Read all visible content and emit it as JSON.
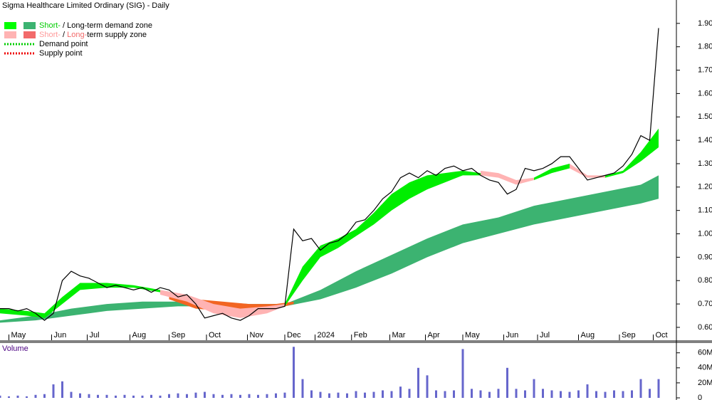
{
  "chart_data": [
    {
      "type": "line",
      "title": "Sigma Healthcare Limited Ordinary (SIG) - Daily",
      "x": [
        0,
        1,
        2,
        3,
        4,
        5,
        6,
        7,
        8,
        9,
        10,
        11,
        12,
        13,
        14,
        15,
        16,
        17,
        18,
        19,
        20,
        21,
        22,
        23,
        24,
        25,
        26,
        27,
        28,
        29,
        30,
        31,
        32,
        33,
        34,
        35,
        36,
        37,
        38,
        39,
        40,
        41,
        42,
        43,
        44,
        45,
        46,
        47,
        48,
        49,
        50,
        51,
        52,
        53,
        54,
        55,
        56,
        57,
        58,
        59,
        60,
        61,
        62,
        63,
        64,
        65,
        66,
        67,
        68,
        69,
        70,
        71,
        72,
        73,
        74
      ],
      "series": [
        {
          "color": "#000000",
          "values": [
            0.68,
            0.68,
            0.67,
            0.68,
            0.66,
            0.63,
            0.66,
            0.8,
            0.84,
            0.82,
            0.81,
            0.79,
            0.77,
            0.78,
            0.77,
            0.76,
            0.77,
            0.75,
            0.77,
            0.76,
            0.73,
            0.74,
            0.7,
            0.64,
            0.65,
            0.66,
            0.64,
            0.63,
            0.65,
            0.68,
            0.68,
            0.68,
            0.69,
            1.02,
            0.97,
            0.98,
            0.93,
            0.96,
            0.97,
            1.0,
            1.05,
            1.06,
            1.1,
            1.15,
            1.18,
            1.24,
            1.26,
            1.24,
            1.27,
            1.25,
            1.28,
            1.29,
            1.27,
            1.28,
            1.25,
            1.23,
            1.22,
            1.17,
            1.19,
            1.28,
            1.27,
            1.28,
            1.3,
            1.33,
            1.33,
            1.28,
            1.23,
            1.24,
            1.25,
            1.26,
            1.29,
            1.34,
            1.42,
            1.4,
            1.88
          ]
        }
      ],
      "zones": {
        "long_term_demand": {
          "color": "#3cb371",
          "x": [
            0,
            4,
            8,
            12,
            16,
            20,
            24,
            28,
            32,
            36,
            40,
            44,
            48,
            52,
            56,
            60,
            64,
            68,
            72,
            74
          ],
          "low": [
            0.62,
            0.63,
            0.65,
            0.67,
            0.68,
            0.69,
            0.69,
            0.69,
            0.69,
            0.72,
            0.77,
            0.83,
            0.9,
            0.96,
            1.0,
            1.04,
            1.07,
            1.1,
            1.13,
            1.15
          ],
          "high": [
            0.63,
            0.65,
            0.68,
            0.7,
            0.71,
            0.71,
            0.71,
            0.7,
            0.7,
            0.76,
            0.84,
            0.91,
            0.98,
            1.04,
            1.07,
            1.12,
            1.15,
            1.18,
            1.21,
            1.25
          ]
        },
        "long_term_supply": {
          "color": "#f26522",
          "x": [
            19,
            22,
            25,
            28,
            31,
            33
          ],
          "low": [
            0.72,
            0.68,
            0.67,
            0.67,
            0.68,
            0.7
          ],
          "high": [
            0.74,
            0.72,
            0.71,
            0.7,
            0.7,
            0.71
          ]
        },
        "short_term_supply": {
          "color": "#ffb3b3",
          "x": [
            18,
            21,
            24,
            27,
            30,
            32,
            33,
            54,
            56,
            58,
            60,
            61,
            64,
            66,
            68
          ],
          "low": [
            0.74,
            0.71,
            0.66,
            0.64,
            0.66,
            0.69,
            null,
            1.25,
            1.24,
            1.21,
            1.23,
            null,
            1.28,
            1.24,
            1.24
          ],
          "high": [
            0.76,
            0.74,
            0.7,
            0.68,
            0.69,
            0.7,
            null,
            1.27,
            1.26,
            1.23,
            1.24,
            null,
            1.3,
            1.25,
            1.25
          ]
        },
        "short_term_demand": {
          "color": "#00ee00",
          "x": [
            0,
            3,
            5,
            7,
            9,
            12,
            15,
            18,
            21,
            24,
            27,
            30,
            32,
            34,
            36,
            38,
            40,
            42,
            44,
            46,
            48,
            50,
            52,
            54,
            56,
            58,
            60,
            62,
            64,
            66,
            68,
            70,
            72,
            74
          ],
          "low": [
            0.66,
            0.65,
            0.64,
            0.7,
            0.76,
            0.77,
            0.77,
            0.75,
            null,
            null,
            null,
            null,
            0.69,
            0.8,
            0.9,
            0.94,
            0.99,
            1.04,
            1.1,
            1.15,
            1.19,
            1.22,
            1.25,
            1.25,
            null,
            null,
            1.23,
            1.26,
            1.28,
            null,
            1.24,
            1.26,
            1.31,
            1.37
          ],
          "high": [
            0.68,
            0.67,
            0.66,
            0.73,
            0.79,
            0.79,
            0.78,
            0.76,
            null,
            null,
            null,
            null,
            0.7,
            0.86,
            0.95,
            0.98,
            1.02,
            1.09,
            1.17,
            1.22,
            1.25,
            1.26,
            1.27,
            1.26,
            null,
            null,
            1.24,
            1.28,
            1.3,
            null,
            1.25,
            1.27,
            1.35,
            1.45
          ]
        }
      },
      "legend": [
        {
          "swatches": [
            "#00ff00",
            "#3cb371"
          ],
          "parts": [
            {
              "text": "Short-",
              "color": "#00cc00"
            },
            {
              "text": " / Long-term demand zone",
              "color": "#000000"
            }
          ]
        },
        {
          "swatches": [
            "#ffb3b3",
            "#f26a6a"
          ],
          "parts": [
            {
              "text": "Short-",
              "color": "#ff9a9a"
            },
            {
              "text": " / ",
              "color": "#000000"
            },
            {
              "text": "Long-",
              "color": "#f26a6a"
            },
            {
              "text": "term supply zone",
              "color": "#000000"
            }
          ]
        },
        {
          "line": "#00cc00",
          "parts": [
            {
              "text": "Demand point",
              "color": "#000000"
            }
          ]
        },
        {
          "line": "#ee0000",
          "parts": [
            {
              "text": "Supply point",
              "color": "#000000"
            }
          ]
        }
      ],
      "xlim": [
        0,
        76
      ],
      "xticks": [
        {
          "value": 1,
          "label": "May"
        },
        {
          "value": 5.8,
          "label": "Jun"
        },
        {
          "value": 9.8,
          "label": "Jul"
        },
        {
          "value": 14.6,
          "label": "Aug"
        },
        {
          "value": 19,
          "label": "Sep"
        },
        {
          "value": 23.2,
          "label": "Oct"
        },
        {
          "value": 27.8,
          "label": "Nov"
        },
        {
          "value": 32,
          "label": "Dec"
        },
        {
          "value": 35.4,
          "label": "2024"
        },
        {
          "value": 39.5,
          "label": "Feb"
        },
        {
          "value": 43.8,
          "label": "Mar"
        },
        {
          "value": 47.8,
          "label": "Apr"
        },
        {
          "value": 52,
          "label": "May"
        },
        {
          "value": 56.6,
          "label": "Jun"
        },
        {
          "value": 60.4,
          "label": "Jul"
        },
        {
          "value": 65,
          "label": "Aug"
        },
        {
          "value": 69.6,
          "label": "Sep"
        },
        {
          "value": 73.4,
          "label": "Oct"
        }
      ],
      "ylim": [
        0.545,
        2.0
      ],
      "yticks": [
        {
          "value": 0.6,
          "label": "0.60"
        },
        {
          "value": 0.7,
          "label": "0.70"
        },
        {
          "value": 0.8,
          "label": "0.80"
        },
        {
          "value": 0.9,
          "label": "0.90"
        },
        {
          "value": 1.0,
          "label": "1.00"
        },
        {
          "value": 1.1,
          "label": "1.10"
        },
        {
          "value": 1.2,
          "label": "1.20"
        },
        {
          "value": 1.3,
          "label": "1.30"
        },
        {
          "value": 1.4,
          "label": "1.40"
        },
        {
          "value": 1.5,
          "label": "1.50"
        },
        {
          "value": 1.6,
          "label": "1.60"
        },
        {
          "value": 1.7,
          "label": "1.70"
        },
        {
          "value": 1.8,
          "label": "1.80"
        },
        {
          "value": 1.9,
          "label": "1.90"
        }
      ]
    },
    {
      "type": "bar",
      "title": "Volume",
      "x": [
        0,
        1,
        2,
        3,
        4,
        5,
        6,
        7,
        8,
        9,
        10,
        11,
        12,
        13,
        14,
        15,
        16,
        17,
        18,
        19,
        20,
        21,
        22,
        23,
        24,
        25,
        26,
        27,
        28,
        29,
        30,
        31,
        32,
        33,
        34,
        35,
        36,
        37,
        38,
        39,
        40,
        41,
        42,
        43,
        44,
        45,
        46,
        47,
        48,
        49,
        50,
        51,
        52,
        53,
        54,
        55,
        56,
        57,
        58,
        59,
        60,
        61,
        62,
        63,
        64,
        65,
        66,
        67,
        68,
        69,
        70,
        71,
        72,
        73,
        74
      ],
      "values": [
        3000000,
        2000000,
        3000000,
        2000000,
        4000000,
        5000000,
        18000000,
        22000000,
        8000000,
        6000000,
        5000000,
        4000000,
        4000000,
        3000000,
        4000000,
        3000000,
        3000000,
        4000000,
        3000000,
        5000000,
        6000000,
        5000000,
        7000000,
        8000000,
        5000000,
        4000000,
        5000000,
        4000000,
        5000000,
        4000000,
        5000000,
        6000000,
        7000000,
        68000000,
        25000000,
        10000000,
        8000000,
        6000000,
        7000000,
        6000000,
        9000000,
        7000000,
        8000000,
        10000000,
        9000000,
        15000000,
        12000000,
        40000000,
        30000000,
        10000000,
        9000000,
        10000000,
        65000000,
        12000000,
        10000000,
        8000000,
        12000000,
        40000000,
        12000000,
        10000000,
        25000000,
        12000000,
        10000000,
        9000000,
        8000000,
        10000000,
        18000000,
        9000000,
        8000000,
        10000000,
        9000000,
        10000000,
        25000000,
        12000000,
        25000000
      ],
      "color": "#6666cc",
      "xlim": [
        0,
        76
      ],
      "ylim": [
        0,
        73000000
      ],
      "yticks": [
        {
          "value": 0,
          "label": "0"
        },
        {
          "value": 20000000,
          "label": "20M"
        },
        {
          "value": 40000000,
          "label": "40M"
        },
        {
          "value": 60000000,
          "label": "60M"
        }
      ]
    }
  ]
}
